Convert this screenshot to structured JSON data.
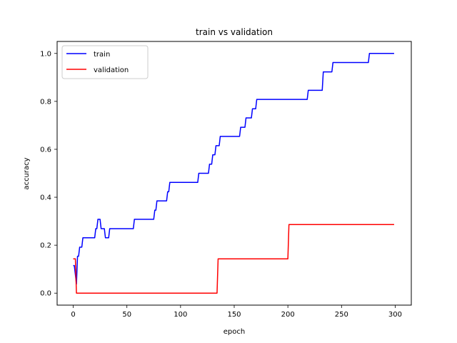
{
  "chart_data": {
    "type": "line",
    "title": "train vs validation",
    "xlabel": "epoch",
    "ylabel": "accuracy",
    "xlim": [
      -15,
      315
    ],
    "ylim": [
      -0.05,
      1.05
    ],
    "xticks": [
      0,
      50,
      100,
      150,
      200,
      250,
      300
    ],
    "yticks": [
      0.0,
      0.2,
      0.4,
      0.6,
      0.8,
      1.0
    ],
    "xtick_labels": [
      "0",
      "50",
      "100",
      "150",
      "200",
      "250",
      "300"
    ],
    "ytick_labels": [
      "0.0",
      "0.2",
      "0.4",
      "0.6",
      "0.8",
      "1.0"
    ],
    "legend_position": "upper-left",
    "series": [
      {
        "name": "train",
        "color": "#0000ff",
        "x": [
          0,
          1,
          2,
          3,
          4,
          5,
          6,
          7,
          8,
          9,
          10,
          11,
          20,
          21,
          22,
          23,
          24,
          25,
          26,
          27,
          28,
          29,
          30,
          31,
          32,
          33,
          34,
          35,
          36,
          56,
          57,
          58,
          75,
          76,
          77,
          78,
          79,
          87,
          88,
          89,
          90,
          91,
          116,
          117,
          126,
          127,
          129,
          130,
          132,
          133,
          136,
          137,
          139,
          140,
          155,
          156,
          160,
          161,
          166,
          167,
          170,
          171,
          218,
          219,
          232,
          233,
          241,
          242,
          275,
          276,
          299
        ],
        "y": [
          0.115,
          0.115,
          0.077,
          0.038,
          0.154,
          0.154,
          0.192,
          0.192,
          0.192,
          0.231,
          0.231,
          0.231,
          0.231,
          0.269,
          0.269,
          0.308,
          0.308,
          0.308,
          0.269,
          0.269,
          0.269,
          0.269,
          0.231,
          0.231,
          0.231,
          0.231,
          0.269,
          0.269,
          0.269,
          0.269,
          0.308,
          0.308,
          0.308,
          0.346,
          0.346,
          0.385,
          0.385,
          0.385,
          0.423,
          0.423,
          0.462,
          0.462,
          0.462,
          0.5,
          0.5,
          0.538,
          0.538,
          0.577,
          0.577,
          0.615,
          0.615,
          0.654,
          0.654,
          0.654,
          0.654,
          0.692,
          0.692,
          0.731,
          0.731,
          0.769,
          0.769,
          0.808,
          0.808,
          0.846,
          0.846,
          0.923,
          0.923,
          0.962,
          0.962,
          1.0,
          1.0
        ]
      },
      {
        "name": "validation",
        "color": "#ff0000",
        "x": [
          0,
          2,
          3,
          4,
          5,
          134,
          135,
          200,
          201,
          299
        ],
        "y": [
          0.143,
          0.143,
          0.0,
          0.0,
          0.0,
          0.0,
          0.143,
          0.143,
          0.286,
          0.286
        ]
      }
    ]
  }
}
